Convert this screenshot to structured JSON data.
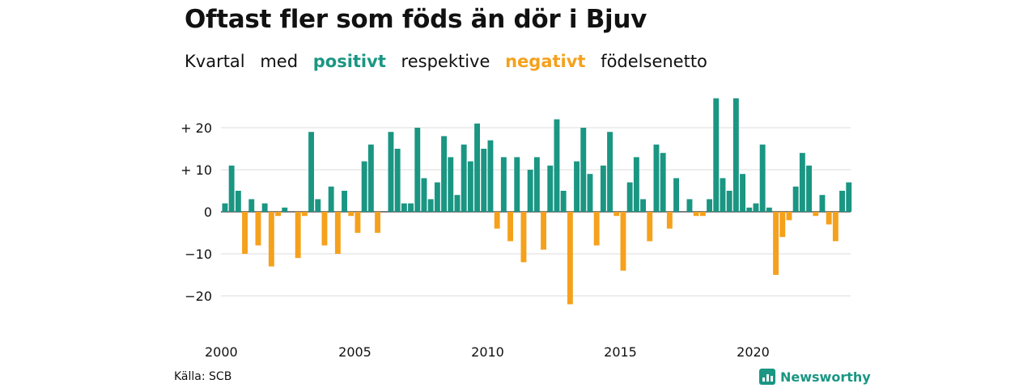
{
  "title": "Oftast fler som föds än dör i Bjuv",
  "subtitle": {
    "part1": "Kvartal",
    "part2": "med",
    "positive_word": "positivt",
    "part3": "respektive",
    "negative_word": "negativt",
    "part4": "födelsenetto"
  },
  "source": "Källa: SCB",
  "brand": "Newsworthy",
  "colors": {
    "positive": "#1a9683",
    "negative": "#f5a11c",
    "grid": "#dddddd"
  },
  "chart_data": {
    "type": "bar",
    "x_start": "2000 Q1",
    "x_tick_labels": [
      "2000",
      "2005",
      "2010",
      "2015",
      "2020"
    ],
    "y_tick_labels": [
      "+ 20",
      "+ 10",
      "0",
      "−10",
      "−20"
    ],
    "y_ticks": [
      20,
      10,
      0,
      -10,
      -20
    ],
    "ylim": [
      -25,
      27
    ],
    "grid": true,
    "values": [
      2,
      11,
      5,
      -10,
      3,
      -8,
      2,
      -13,
      -1,
      1,
      0,
      -11,
      -1,
      19,
      3,
      -8,
      6,
      -10,
      5,
      -1,
      -5,
      12,
      16,
      -5,
      0,
      19,
      15,
      2,
      2,
      20,
      8,
      3,
      7,
      18,
      13,
      4,
      16,
      12,
      21,
      15,
      17,
      -4,
      13,
      -7,
      13,
      -12,
      10,
      13,
      -9,
      11,
      22,
      5,
      -22,
      12,
      20,
      9,
      -8,
      11,
      19,
      -1,
      -14,
      7,
      13,
      3,
      -7,
      16,
      14,
      -4,
      8,
      0,
      3,
      -1,
      -1,
      3,
      27,
      8,
      5,
      27,
      9,
      1,
      2,
      16,
      1,
      -15,
      -6,
      -2,
      6,
      14,
      11,
      -1,
      4,
      -3,
      -7,
      5,
      7
    ]
  }
}
